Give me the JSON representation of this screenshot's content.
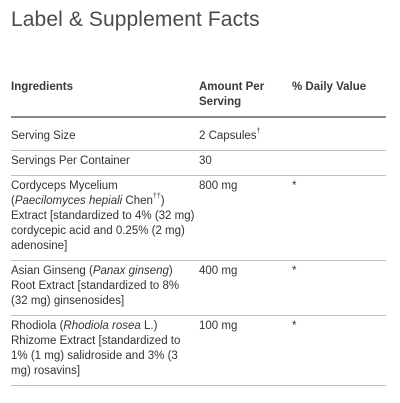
{
  "page": {
    "title": "Label & Supplement Facts"
  },
  "table": {
    "headers": {
      "ingredients": "Ingredients",
      "amount_line1": "Amount Per",
      "amount_line2": "Serving",
      "daily_value": "% Daily Value"
    },
    "serving_size": {
      "label": "Serving Size",
      "amount": "2 Capsules",
      "amount_mark": "†",
      "daily_value": ""
    },
    "servings_per_container": {
      "label": "Servings Per Container",
      "amount": "30",
      "daily_value": ""
    },
    "cordyceps": {
      "name_a": "Cordyceps Mycelium",
      "name_paren_open": "(",
      "name_italic": "Paecilomyces hepiali",
      "name_b": " Chen",
      "name_mark": "††",
      "name_paren_close": ")",
      "name_c": "Extract [standardized to 4% (32 mg) cordycepic acid and 0.25% (2 mg) adenosine]",
      "amount": "800 mg",
      "daily_value": "*"
    },
    "ginseng": {
      "name_a": "Asian Ginseng (",
      "name_italic": "Panax ginseng",
      "name_b": ") Root Extract [standardized to 8% (32 mg) ginsenosides]",
      "amount": "400 mg",
      "daily_value": "*"
    },
    "rhodiola": {
      "name_a": "Rhodiola (",
      "name_italic": "Rhodiola rosea",
      "name_b": " L.) Rhizome Extract [standardized to 1% (1 mg) salidroside and 3% (3 mg) rosavins]",
      "amount": "100 mg",
      "daily_value": "*"
    }
  }
}
